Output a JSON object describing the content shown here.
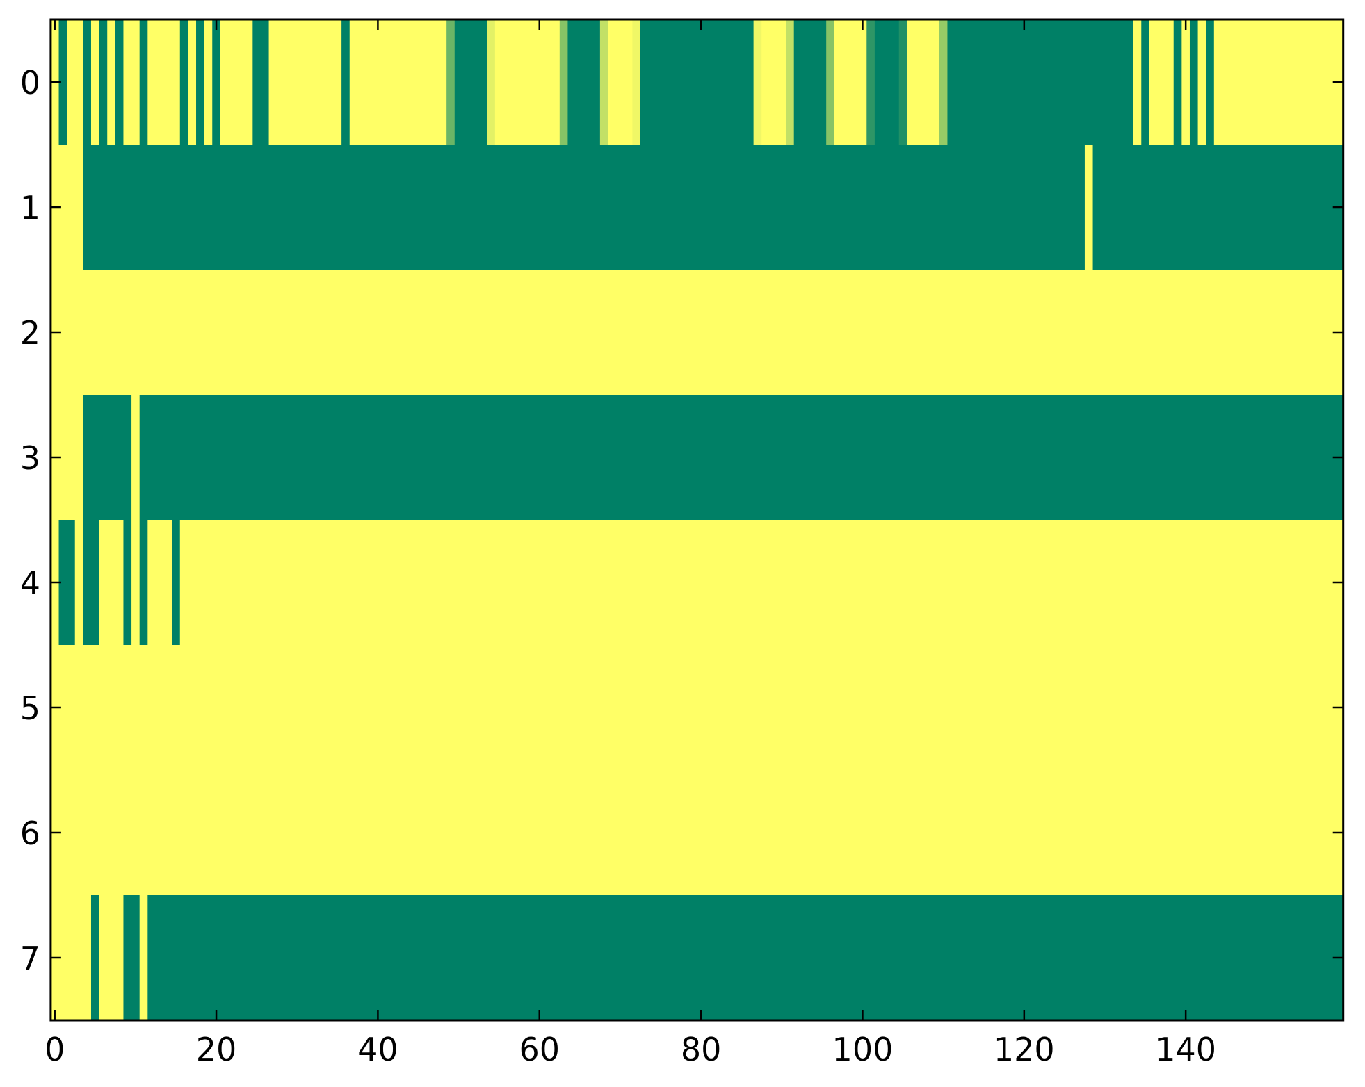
{
  "chart_data": {
    "type": "heatmap",
    "title": "",
    "xlabel": "",
    "ylabel": "",
    "colormap": "summer",
    "color_low": "#008066",
    "color_high": "#ffff66",
    "value_range": [
      0,
      1
    ],
    "xlim": [
      -0.5,
      159.5
    ],
    "ylim": [
      7.5,
      -0.5
    ],
    "grid": false,
    "x_ticks": [
      0,
      20,
      40,
      60,
      80,
      100,
      120,
      140
    ],
    "x_tick_labels": [
      "0",
      "20",
      "40",
      "60",
      "80",
      "100",
      "120",
      "140"
    ],
    "y_ticks": [
      0,
      1,
      2,
      3,
      4,
      5,
      6,
      7
    ],
    "y_tick_labels": [
      "0",
      "1",
      "2",
      "3",
      "4",
      "5",
      "6",
      "7"
    ],
    "rows": [
      [
        1,
        0,
        1,
        1,
        0,
        1,
        0,
        1,
        0,
        1,
        1,
        0,
        1,
        1,
        1,
        1,
        0,
        1,
        0,
        1,
        0,
        1,
        1,
        1,
        1,
        0,
        0,
        1,
        1,
        1,
        1,
        1,
        1,
        1,
        1,
        1,
        0,
        1,
        1,
        1,
        1,
        1,
        1,
        1,
        1,
        1,
        1,
        1,
        1,
        0.42,
        0,
        0,
        0,
        0,
        0.89,
        1,
        1,
        1,
        1,
        1,
        1,
        1,
        1,
        0.53,
        0,
        0,
        0,
        0,
        0.76,
        1,
        1,
        1,
        0.94,
        0,
        0,
        0,
        0,
        0,
        0,
        0,
        0,
        0,
        0,
        0,
        0,
        0,
        0,
        0.94,
        1,
        1,
        1,
        0.76,
        0,
        0,
        0,
        0,
        0.53,
        1,
        1,
        1,
        1,
        0.18,
        0,
        0,
        0,
        0.13,
        1,
        1,
        1,
        1,
        0.59,
        0,
        0,
        0,
        0,
        0,
        0,
        0,
        0,
        0,
        0,
        0,
        0,
        0,
        0,
        0,
        0,
        0,
        0,
        0,
        0,
        0,
        0,
        0,
        1,
        0,
        1,
        1,
        1,
        0,
        1,
        0,
        1,
        0,
        1,
        1,
        1,
        1,
        1,
        1,
        1,
        1,
        1,
        1,
        1,
        1,
        1,
        1,
        1,
        1
      ],
      [
        1,
        1,
        1,
        1,
        0,
        0,
        0,
        0,
        0,
        0,
        0,
        0,
        0,
        0,
        0,
        0,
        0,
        0,
        0,
        0,
        0,
        0,
        0,
        0,
        0,
        0,
        0,
        0,
        0,
        0,
        0,
        0,
        0,
        0,
        0,
        0,
        0,
        0,
        0,
        0,
        0,
        0,
        0,
        0,
        0,
        0,
        0,
        0,
        0,
        0,
        0,
        0,
        0,
        0,
        0,
        0,
        0,
        0,
        0,
        0,
        0,
        0,
        0,
        0,
        0,
        0,
        0,
        0,
        0,
        0,
        0,
        0,
        0,
        0,
        0,
        0,
        0,
        0,
        0,
        0,
        0,
        0,
        0,
        0,
        0,
        0,
        0,
        0,
        0,
        0,
        0,
        0,
        0,
        0,
        0,
        0,
        0,
        0,
        0,
        0,
        0,
        0,
        0,
        0,
        0,
        0,
        0,
        0,
        0,
        0,
        0,
        0,
        0,
        0,
        0,
        0,
        0,
        0,
        0,
        0,
        0,
        0,
        0,
        0,
        0,
        0,
        0,
        0,
        1,
        0,
        0,
        0,
        0,
        0,
        0,
        0,
        0,
        0,
        0,
        0,
        0,
        0,
        0,
        0,
        0,
        0,
        0,
        0,
        0,
        0,
        0,
        0,
        0,
        0,
        0,
        0,
        0,
        0,
        0,
        0
      ],
      [
        1,
        1,
        1,
        1,
        1,
        1,
        1,
        1,
        1,
        1,
        1,
        1,
        1,
        1,
        1,
        1,
        1,
        1,
        1,
        1,
        1,
        1,
        1,
        1,
        1,
        1,
        1,
        1,
        1,
        1,
        1,
        1,
        1,
        1,
        1,
        1,
        1,
        1,
        1,
        1,
        1,
        1,
        1,
        1,
        1,
        1,
        1,
        1,
        1,
        1,
        1,
        1,
        1,
        1,
        1,
        1,
        1,
        1,
        1,
        1,
        1,
        1,
        1,
        1,
        1,
        1,
        1,
        1,
        1,
        1,
        1,
        1,
        1,
        1,
        1,
        1,
        1,
        1,
        1,
        1,
        1,
        1,
        1,
        1,
        1,
        1,
        1,
        1,
        1,
        1,
        1,
        1,
        1,
        1,
        1,
        1,
        1,
        1,
        1,
        1,
        1,
        1,
        1,
        1,
        1,
        1,
        1,
        1,
        1,
        1,
        1,
        1,
        1,
        1,
        1,
        1,
        1,
        1,
        1,
        1,
        1,
        1,
        1,
        1,
        1,
        1,
        1,
        1,
        1,
        1,
        1,
        1,
        1,
        1,
        1,
        1,
        1,
        1,
        1,
        1,
        1,
        1,
        1,
        1,
        1,
        1,
        1,
        1,
        1,
        1,
        1,
        1,
        1,
        1,
        1,
        1,
        1,
        1,
        1,
        1
      ],
      [
        1,
        1,
        1,
        1,
        0,
        0,
        0,
        0,
        0,
        0,
        1,
        0,
        0,
        0,
        0,
        0,
        0,
        0,
        0,
        0,
        0,
        0,
        0,
        0,
        0,
        0,
        0,
        0,
        0,
        0,
        0,
        0,
        0,
        0,
        0,
        0,
        0,
        0,
        0,
        0,
        0,
        0,
        0,
        0,
        0,
        0,
        0,
        0,
        0,
        0,
        0,
        0,
        0,
        0,
        0,
        0,
        0,
        0,
        0,
        0,
        0,
        0,
        0,
        0,
        0,
        0,
        0,
        0,
        0,
        0,
        0,
        0,
        0,
        0,
        0,
        0,
        0,
        0,
        0,
        0,
        0,
        0,
        0,
        0,
        0,
        0,
        0,
        0,
        0,
        0,
        0,
        0,
        0,
        0,
        0,
        0,
        0,
        0,
        0,
        0,
        0,
        0,
        0,
        0,
        0,
        0,
        0,
        0,
        0,
        0,
        0,
        0,
        0,
        0,
        0,
        0,
        0,
        0,
        0,
        0,
        0,
        0,
        0,
        0,
        0,
        0,
        0,
        0,
        0,
        0,
        0,
        0,
        0,
        0,
        0,
        0,
        0,
        0,
        0,
        0,
        0,
        0,
        0,
        0,
        0,
        0,
        0,
        0,
        0,
        0,
        0,
        0,
        0,
        0,
        0,
        0,
        0,
        0,
        0,
        0
      ],
      [
        1,
        0,
        0,
        1,
        0,
        0,
        1,
        1,
        1,
        0,
        1,
        0,
        1,
        1,
        1,
        0,
        1,
        1,
        1,
        1,
        1,
        1,
        1,
        1,
        1,
        1,
        1,
        1,
        1,
        1,
        1,
        1,
        1,
        1,
        1,
        1,
        1,
        1,
        1,
        1,
        1,
        1,
        1,
        1,
        1,
        1,
        1,
        1,
        1,
        1,
        1,
        1,
        1,
        1,
        1,
        1,
        1,
        1,
        1,
        1,
        1,
        1,
        1,
        1,
        1,
        1,
        1,
        1,
        1,
        1,
        1,
        1,
        1,
        1,
        1,
        1,
        1,
        1,
        1,
        1,
        1,
        1,
        1,
        1,
        1,
        1,
        1,
        1,
        1,
        1,
        1,
        1,
        1,
        1,
        1,
        1,
        1,
        1,
        1,
        1,
        1,
        1,
        1,
        1,
        1,
        1,
        1,
        1,
        1,
        1,
        1,
        1,
        1,
        1,
        1,
        1,
        1,
        1,
        1,
        1,
        1,
        1,
        1,
        1,
        1,
        1,
        1,
        1,
        1,
        1,
        1,
        1,
        1,
        1,
        1,
        1,
        1,
        1,
        1,
        1,
        1,
        1,
        1,
        1,
        1,
        1,
        1,
        1,
        1,
        1,
        1,
        1,
        1,
        1,
        1,
        1,
        1,
        1,
        1,
        1
      ],
      [
        1,
        1,
        1,
        1,
        1,
        1,
        1,
        1,
        1,
        1,
        1,
        1,
        1,
        1,
        1,
        1,
        1,
        1,
        1,
        1,
        1,
        1,
        1,
        1,
        1,
        1,
        1,
        1,
        1,
        1,
        1,
        1,
        1,
        1,
        1,
        1,
        1,
        1,
        1,
        1,
        1,
        1,
        1,
        1,
        1,
        1,
        1,
        1,
        1,
        1,
        1,
        1,
        1,
        1,
        1,
        1,
        1,
        1,
        1,
        1,
        1,
        1,
        1,
        1,
        1,
        1,
        1,
        1,
        1,
        1,
        1,
        1,
        1,
        1,
        1,
        1,
        1,
        1,
        1,
        1,
        1,
        1,
        1,
        1,
        1,
        1,
        1,
        1,
        1,
        1,
        1,
        1,
        1,
        1,
        1,
        1,
        1,
        1,
        1,
        1,
        1,
        1,
        1,
        1,
        1,
        1,
        1,
        1,
        1,
        1,
        1,
        1,
        1,
        1,
        1,
        1,
        1,
        1,
        1,
        1,
        1,
        1,
        1,
        1,
        1,
        1,
        1,
        1,
        1,
        1,
        1,
        1,
        1,
        1,
        1,
        1,
        1,
        1,
        1,
        1,
        1,
        1,
        1,
        1,
        1,
        1,
        1,
        1,
        1,
        1,
        1,
        1,
        1,
        1,
        1,
        1,
        1,
        1,
        1,
        1
      ],
      [
        1,
        1,
        1,
        1,
        1,
        1,
        1,
        1,
        1,
        1,
        1,
        1,
        1,
        1,
        1,
        1,
        1,
        1,
        1,
        1,
        1,
        1,
        1,
        1,
        1,
        1,
        1,
        1,
        1,
        1,
        1,
        1,
        1,
        1,
        1,
        1,
        1,
        1,
        1,
        1,
        1,
        1,
        1,
        1,
        1,
        1,
        1,
        1,
        1,
        1,
        1,
        1,
        1,
        1,
        1,
        1,
        1,
        1,
        1,
        1,
        1,
        1,
        1,
        1,
        1,
        1,
        1,
        1,
        1,
        1,
        1,
        1,
        1,
        1,
        1,
        1,
        1,
        1,
        1,
        1,
        1,
        1,
        1,
        1,
        1,
        1,
        1,
        1,
        1,
        1,
        1,
        1,
        1,
        1,
        1,
        1,
        1,
        1,
        1,
        1,
        1,
        1,
        1,
        1,
        1,
        1,
        1,
        1,
        1,
        1,
        1,
        1,
        1,
        1,
        1,
        1,
        1,
        1,
        1,
        1,
        1,
        1,
        1,
        1,
        1,
        1,
        1,
        1,
        1,
        1,
        1,
        1,
        1,
        1,
        1,
        1,
        1,
        1,
        1,
        1,
        1,
        1,
        1,
        1,
        1,
        1,
        1,
        1,
        1,
        1,
        1,
        1,
        1,
        1,
        1,
        1,
        1,
        1,
        1,
        1
      ],
      [
        1,
        1,
        1,
        1,
        1,
        0,
        1,
        1,
        1,
        0,
        0,
        1,
        0,
        0,
        0,
        0,
        0,
        0,
        0,
        0,
        0,
        0,
        0,
        0,
        0,
        0,
        0,
        0,
        0,
        0,
        0,
        0,
        0,
        0,
        0,
        0,
        0,
        0,
        0,
        0,
        0,
        0,
        0,
        0,
        0,
        0,
        0,
        0,
        0,
        0,
        0,
        0,
        0,
        0,
        0,
        0,
        0,
        0,
        0,
        0,
        0,
        0,
        0,
        0,
        0,
        0,
        0,
        0,
        0,
        0,
        0,
        0,
        0,
        0,
        0,
        0,
        0,
        0,
        0,
        0,
        0,
        0,
        0,
        0,
        0,
        0,
        0,
        0,
        0,
        0,
        0,
        0,
        0,
        0,
        0,
        0,
        0,
        0,
        0,
        0,
        0,
        0,
        0,
        0,
        0,
        0,
        0,
        0,
        0,
        0,
        0,
        0,
        0,
        0,
        0,
        0,
        0,
        0,
        0,
        0,
        0,
        0,
        0,
        0,
        0,
        0,
        0,
        0,
        0,
        0,
        0,
        0,
        0,
        0,
        0,
        0,
        0,
        0,
        0,
        0,
        0,
        0,
        0,
        0,
        0,
        0,
        0,
        0,
        0,
        0,
        0,
        0,
        0,
        0,
        0,
        0,
        0,
        0,
        0,
        0
      ]
    ]
  }
}
